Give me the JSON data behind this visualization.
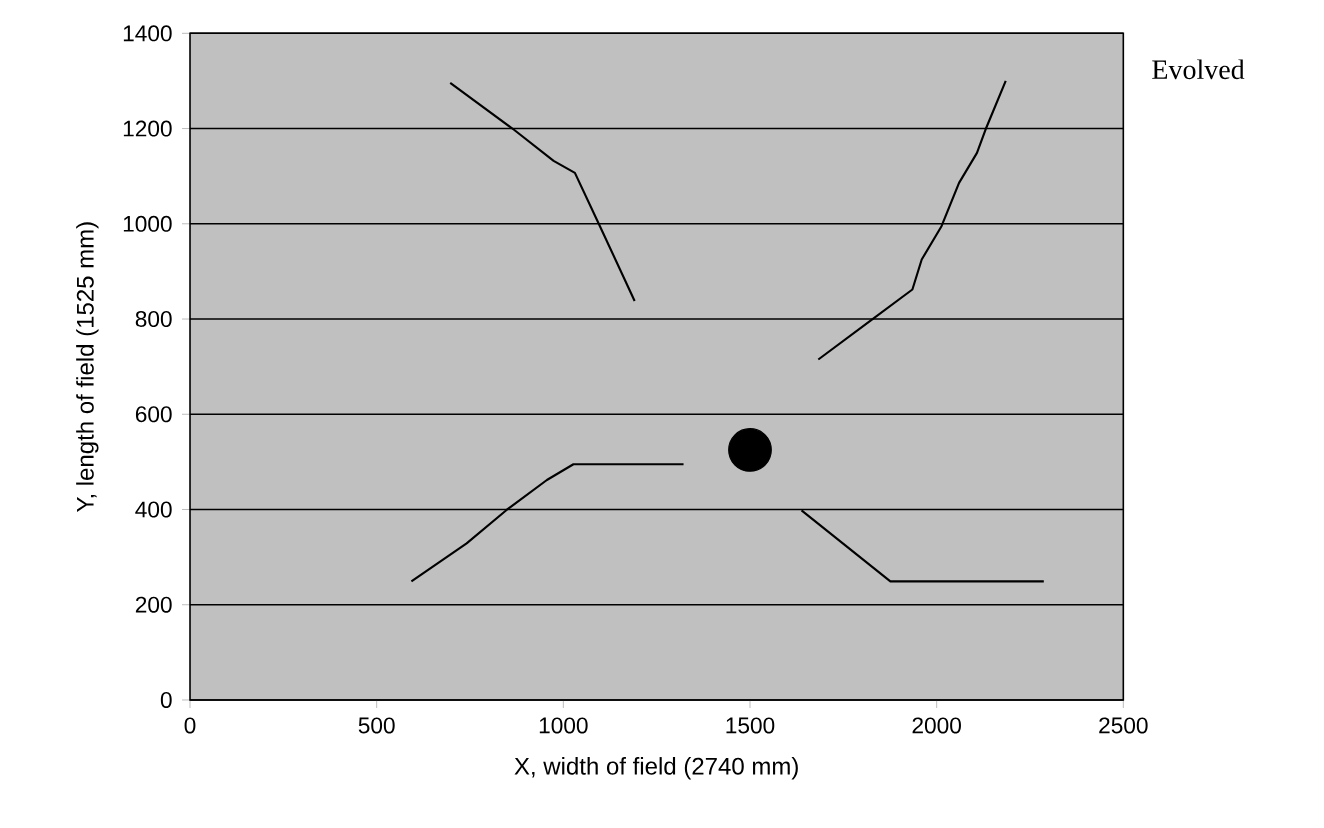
{
  "chart_data": {
    "type": "line",
    "xlabel": "X, width of field (2740 mm)",
    "ylabel": "Y, length of field (1525 mm)",
    "annotations": [
      "Evolved"
    ],
    "xlim": [
      0,
      2500
    ],
    "xticks": [
      0,
      500,
      1000,
      1500,
      2000,
      2500
    ],
    "ylim": [
      0,
      1400
    ],
    "yticks": [
      0,
      200,
      400,
      600,
      800,
      1000,
      1200,
      1400
    ],
    "grid": "y",
    "series": [
      {
        "color": "#000000",
        "x": [
          697,
          867,
          974,
          1031,
          1098,
          1191
        ],
        "values": [
          1296,
          1198,
          1132,
          1107,
          995,
          838
        ]
      },
      {
        "color": "#000000",
        "x": [
          1683,
          1822,
          1935,
          1960,
          2013,
          2060,
          2108,
          2131,
          2185
        ],
        "values": [
          715,
          796,
          862,
          925,
          995,
          1086,
          1149,
          1198,
          1300
        ]
      },
      {
        "color": "#000000",
        "x": [
          593,
          741,
          848,
          956,
          1027,
          1322
        ],
        "values": [
          249,
          329,
          399,
          462,
          495,
          495
        ]
      },
      {
        "color": "#000000",
        "x": [
          1638,
          1876,
          2287
        ],
        "values": [
          398,
          249,
          249
        ]
      },
      {
        "type": "scatter",
        "marker": "circle",
        "color": "#000000",
        "x": [
          1500
        ],
        "values": [
          525
        ]
      }
    ]
  }
}
